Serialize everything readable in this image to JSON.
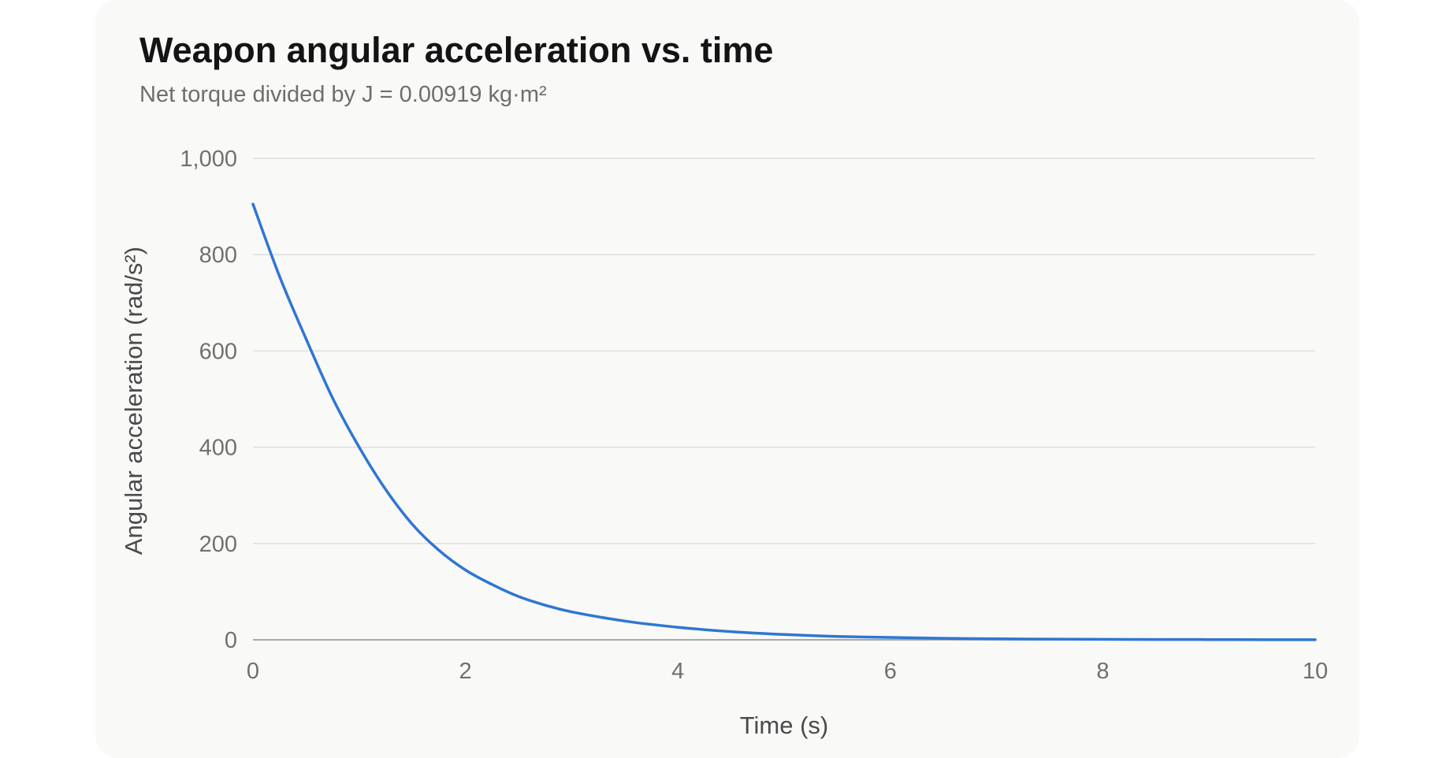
{
  "title": "Weapon angular acceleration vs. time",
  "subtitle": "Net torque divided by J = 0.00919 kg·m²",
  "colors": {
    "line": "#2f76d2",
    "grid": "#dedede",
    "baseline": "#a9a9a9",
    "card": "#f9f9f8"
  },
  "chart_data": {
    "type": "line",
    "title": "Weapon angular acceleration vs. time",
    "subtitle": "Net torque divided by J = 0.00919 kg·m²",
    "xlabel": "Time (s)",
    "ylabel": "Angular acceleration (rad/s²)",
    "xlim": [
      0,
      10
    ],
    "ylim": [
      0,
      1000
    ],
    "xticks": [
      0,
      2,
      4,
      6,
      8,
      10
    ],
    "xtick_labels": [
      "0",
      "2",
      "4",
      "6",
      "8",
      "10"
    ],
    "yticks": [
      0,
      200,
      400,
      600,
      800,
      1000
    ],
    "ytick_labels": [
      "0",
      "200",
      "400",
      "600",
      "800",
      "1,000"
    ],
    "grid": true,
    "legend": "none",
    "series": [
      {
        "x": [
          0,
          0.25,
          0.5,
          0.75,
          1,
          1.25,
          1.5,
          1.75,
          2,
          2.25,
          2.5,
          2.75,
          3,
          3.5,
          4,
          4.5,
          5,
          5.5,
          6,
          6.5,
          7,
          7.5,
          8,
          8.5,
          9,
          9.5,
          10
        ],
        "y": [
          905,
          755,
          625,
          502,
          400,
          312,
          240,
          186,
          145,
          115,
          90,
          72,
          58,
          39,
          26,
          17,
          11,
          7,
          5,
          3,
          2,
          1.5,
          1,
          0.7,
          0.5,
          0.3,
          0.2
        ]
      }
    ]
  }
}
